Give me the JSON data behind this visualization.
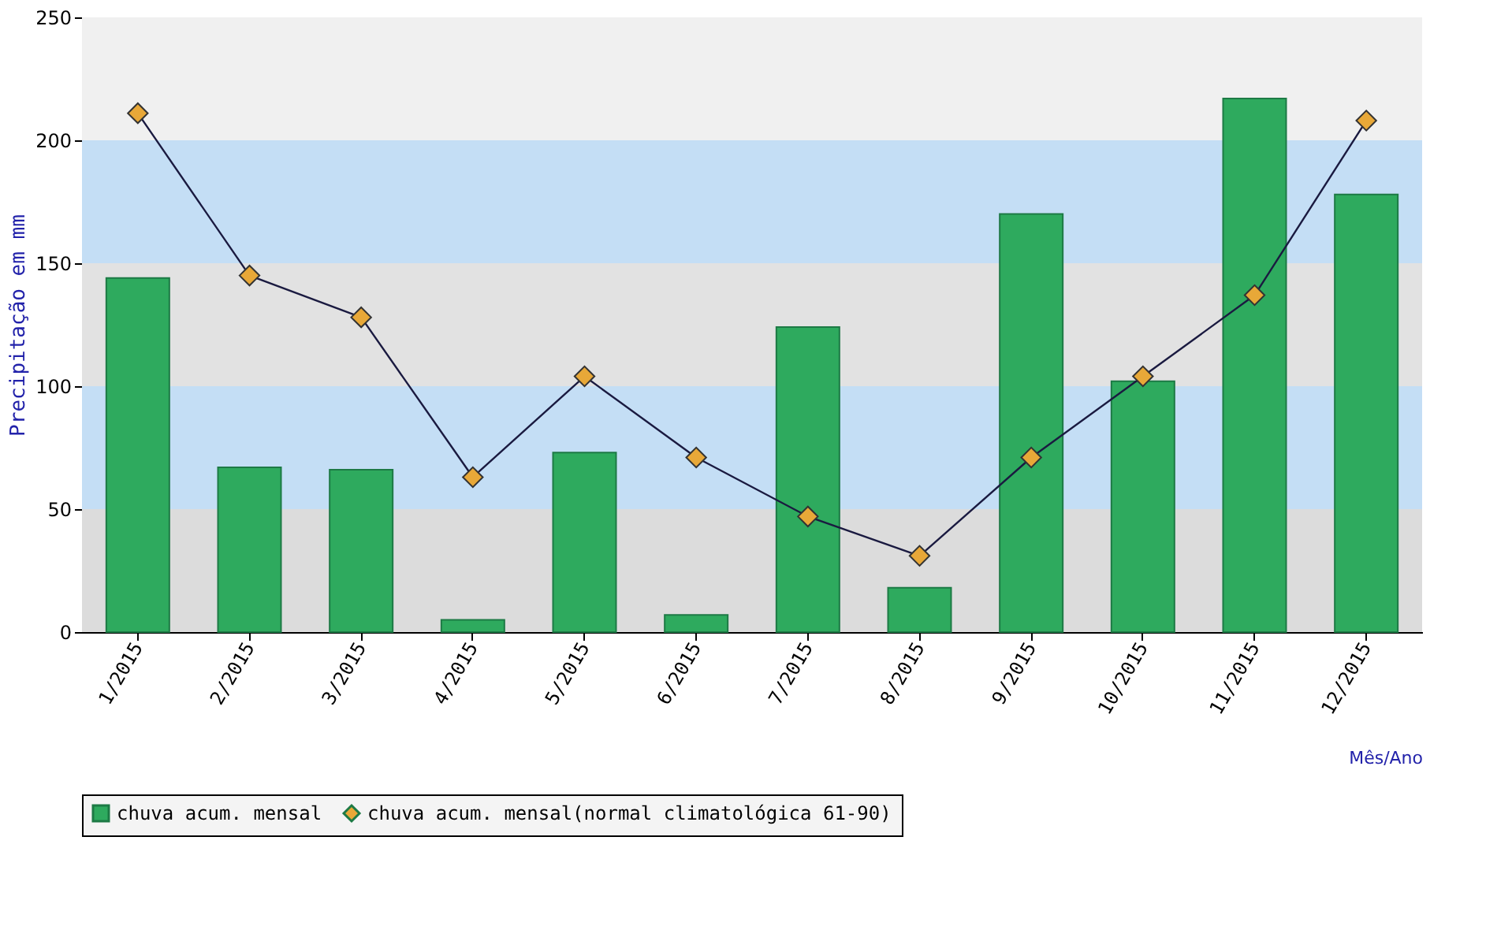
{
  "chart_data": {
    "type": "bar",
    "xlabel": "Mês/Ano",
    "ylabel": "Precipitação em mm",
    "categories": [
      "1/2015",
      "2/2015",
      "3/2015",
      "4/2015",
      "5/2015",
      "6/2015",
      "7/2015",
      "8/2015",
      "9/2015",
      "10/2015",
      "11/2015",
      "12/2015"
    ],
    "series": [
      {
        "name": "chuva acum. mensal",
        "color": "#2eaa5e",
        "values": [
          144,
          67,
          66,
          5,
          73,
          7,
          124,
          18,
          170,
          102,
          217,
          178
        ]
      },
      {
        "name": "chuva acum. mensal(normal climatológica 61-90)",
        "type": "line",
        "color": "#e8a838",
        "values": [
          211,
          145,
          128,
          63,
          104,
          71,
          47,
          31,
          71,
          104,
          137,
          208
        ]
      }
    ],
    "ylim": [
      0,
      250
    ],
    "yticks": [
      0,
      50,
      100,
      150,
      200,
      250
    ],
    "bands": [
      {
        "axis": "y",
        "from": 0,
        "to": 50,
        "color": "#dcdcdc"
      },
      {
        "axis": "y",
        "from": 50,
        "to": 100,
        "color": "#c4def5"
      },
      {
        "axis": "y",
        "from": 100,
        "to": 150,
        "color": "#e2e2e2"
      },
      {
        "axis": "y",
        "from": 150,
        "to": 200,
        "color": "#c4def5"
      },
      {
        "axis": "y",
        "from": 200,
        "to": 250,
        "color": "#f0f0f0"
      }
    ],
    "marker": "diamond",
    "legend": "bottom",
    "grid": false
  }
}
